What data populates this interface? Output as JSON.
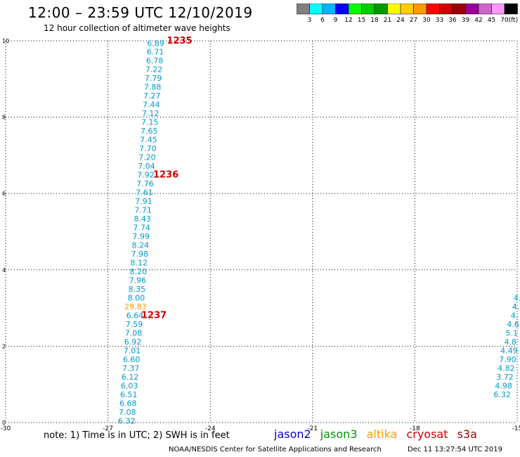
{
  "header": {
    "title": "12:00 – 23:59 UTC 12/10/2019",
    "subtitle": "12 hour collection of altimeter wave heights"
  },
  "colorbar": {
    "unit": "(ft)",
    "labels": [
      "3",
      "6",
      "9",
      "12",
      "15",
      "18",
      "21",
      "24",
      "27",
      "30",
      "33",
      "36",
      "39",
      "42",
      "45",
      "70"
    ],
    "colors": [
      "#808080",
      "#00ffff",
      "#00b4ff",
      "#0000ff",
      "#00ff00",
      "#00cc00",
      "#009900",
      "#ffff00",
      "#ffcc00",
      "#ff9900",
      "#ff0000",
      "#cc0000",
      "#990000",
      "#990099",
      "#cc66cc",
      "#ff99ff",
      "#000000"
    ]
  },
  "footer": {
    "note": "note:  1) Time is in UTC;  2) SWH is in feet",
    "legend": [
      {
        "name": "jason2",
        "color": "#0000cc"
      },
      {
        "name": "jason3",
        "color": "#009900"
      },
      {
        "name": "altika",
        "color": "#ff9900"
      },
      {
        "name": "cryosat",
        "color": "#cc0000"
      },
      {
        "name": "s3a",
        "color": "#990000"
      }
    ],
    "credit": "NOAA/NESDIS Center for Satellite Applications and Research",
    "timestamp": "Dec 11 13:27:54 UTC 2019"
  },
  "chart_data": {
    "type": "scatter",
    "title": "12:00 – 23:59 UTC 12/10/2019",
    "xlim": [
      -30,
      -15
    ],
    "ylim": [
      0,
      10
    ],
    "x_ticks": [
      -30,
      -27,
      -24,
      -21,
      -18,
      -15
    ],
    "y_ticks": [
      0,
      2,
      4,
      6,
      8,
      10
    ],
    "grid": true,
    "label_color_default": "#0099cc",
    "time_color": "#cc0000",
    "series": [
      {
        "values": [
          {
            "x": -25.6,
            "y": 9.94,
            "label": "6.89"
          },
          {
            "x": -25.61,
            "y": 9.71,
            "label": "6.71"
          },
          {
            "x": -25.63,
            "y": 9.48,
            "label": "6.78"
          },
          {
            "x": -25.65,
            "y": 9.25,
            "label": "7.22"
          },
          {
            "x": -25.67,
            "y": 9.02,
            "label": "7.79"
          },
          {
            "x": -25.69,
            "y": 8.79,
            "label": "7.88"
          },
          {
            "x": -25.71,
            "y": 8.56,
            "label": "7.27"
          },
          {
            "x": -25.73,
            "y": 8.33,
            "label": "7.44"
          },
          {
            "x": -25.75,
            "y": 8.1,
            "label": "7.12"
          },
          {
            "x": -25.77,
            "y": 7.87,
            "label": "7.15"
          },
          {
            "x": -25.79,
            "y": 7.64,
            "label": "7.65"
          },
          {
            "x": -25.81,
            "y": 7.41,
            "label": "7.45"
          },
          {
            "x": -25.83,
            "y": 7.18,
            "label": "7.70"
          },
          {
            "x": -25.85,
            "y": 6.95,
            "label": "7.20"
          },
          {
            "x": -25.87,
            "y": 6.72,
            "label": "7.04"
          },
          {
            "x": -25.89,
            "y": 6.49,
            "label": "7.92"
          },
          {
            "x": -25.91,
            "y": 6.26,
            "label": "7.76"
          },
          {
            "x": -25.93,
            "y": 6.03,
            "label": "7.61"
          },
          {
            "x": -25.95,
            "y": 5.8,
            "label": "7.91"
          },
          {
            "x": -25.97,
            "y": 5.57,
            "label": "7.71"
          },
          {
            "x": -25.99,
            "y": 5.34,
            "label": "8.43"
          },
          {
            "x": -26.01,
            "y": 5.11,
            "label": "7.74"
          },
          {
            "x": -26.03,
            "y": 4.88,
            "label": "7.99"
          },
          {
            "x": -26.05,
            "y": 4.65,
            "label": "8.24"
          },
          {
            "x": -26.07,
            "y": 4.42,
            "label": "7.98"
          },
          {
            "x": -26.09,
            "y": 4.19,
            "label": "8.12"
          },
          {
            "x": -26.11,
            "y": 3.96,
            "label": "8.20"
          },
          {
            "x": -26.13,
            "y": 3.73,
            "label": "7.96"
          },
          {
            "x": -26.15,
            "y": 3.5,
            "label": "8.35"
          },
          {
            "x": -26.17,
            "y": 3.27,
            "label": "8.00"
          },
          {
            "x": -26.19,
            "y": 3.04,
            "label": "29.83",
            "color": "#ff9900"
          },
          {
            "x": -26.21,
            "y": 2.81,
            "label": "6.64"
          },
          {
            "x": -26.23,
            "y": 2.58,
            "label": "7.59"
          },
          {
            "x": -26.25,
            "y": 2.35,
            "label": "7.08"
          },
          {
            "x": -26.27,
            "y": 2.12,
            "label": "6.92"
          },
          {
            "x": -26.29,
            "y": 1.89,
            "label": "7.01"
          },
          {
            "x": -26.31,
            "y": 1.66,
            "label": "6.60"
          },
          {
            "x": -26.33,
            "y": 1.43,
            "label": "7.37"
          },
          {
            "x": -26.35,
            "y": 1.2,
            "label": "6.12"
          },
          {
            "x": -26.37,
            "y": 0.97,
            "label": "6.03"
          },
          {
            "x": -26.39,
            "y": 0.74,
            "label": "6.51"
          },
          {
            "x": -26.41,
            "y": 0.51,
            "label": "6.68"
          },
          {
            "x": -26.43,
            "y": 0.28,
            "label": "7.08"
          },
          {
            "x": -26.45,
            "y": 0.05,
            "label": "6.32"
          },
          {
            "x": -15.0,
            "y": 3.27,
            "label": "4."
          },
          {
            "x": -15.04,
            "y": 3.04,
            "label": "4."
          },
          {
            "x": -15.08,
            "y": 2.81,
            "label": "4."
          },
          {
            "x": -15.12,
            "y": 2.58,
            "label": "4.6"
          },
          {
            "x": -15.16,
            "y": 2.35,
            "label": "5.1"
          },
          {
            "x": -15.2,
            "y": 2.12,
            "label": "4.8"
          },
          {
            "x": -15.24,
            "y": 1.89,
            "label": "4.49"
          },
          {
            "x": -15.28,
            "y": 1.66,
            "label": "7.90"
          },
          {
            "x": -15.32,
            "y": 1.43,
            "label": "4.82"
          },
          {
            "x": -15.36,
            "y": 1.2,
            "label": "3.72"
          },
          {
            "x": -15.4,
            "y": 0.97,
            "label": "4.98"
          },
          {
            "x": -15.44,
            "y": 0.74,
            "label": "6.32"
          }
        ]
      }
    ],
    "time_labels": [
      {
        "x": -24.9,
        "y": 10.0,
        "label": "1235"
      },
      {
        "x": -25.3,
        "y": 6.49,
        "label": "1236"
      },
      {
        "x": -25.65,
        "y": 2.81,
        "label": "1237"
      }
    ]
  }
}
